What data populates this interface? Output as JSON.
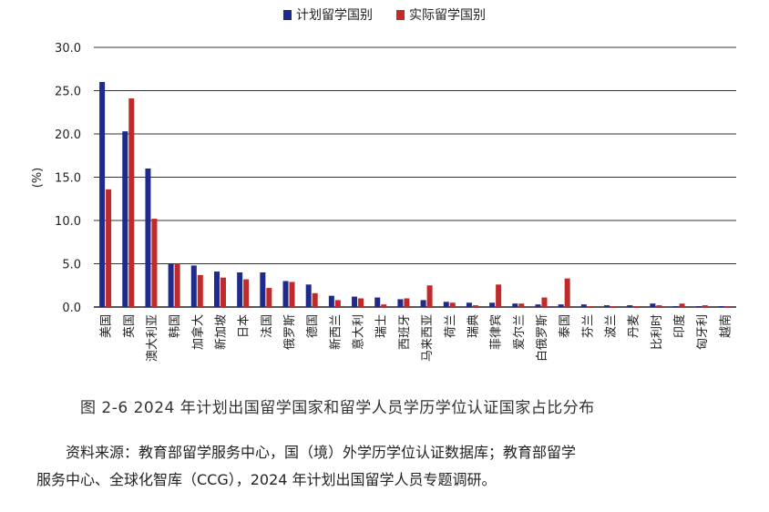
{
  "colors": {
    "planned": "#1f2a8a",
    "actual": "#c22a2a"
  },
  "legend": {
    "planned_label": "计划留学国别",
    "actual_label": "实际留学国别",
    "placement": "top-center"
  },
  "ylabel": "(%)",
  "caption": "图 2-6   2024 年计划出国留学国家和留学人员学历学位认证国家占比分布",
  "source_line1": "资料来源：教育部留学服务中心，国（境）外学历学位认证数据库；教育部留学",
  "source_line2": "服务中心、全球化智库（CCG），2024 年计划出国留学人员专题调研。",
  "chart_data": {
    "type": "bar",
    "title": "",
    "xlabel": "",
    "ylabel": "(%)",
    "ylim": [
      0,
      30
    ],
    "yticks": [
      "0.0",
      "5.0",
      "10.0",
      "15.0",
      "20.0",
      "25.0",
      "30.0"
    ],
    "grid": true,
    "legend_position": "top-center",
    "categories": [
      "美国",
      "英国",
      "澳大利亚",
      "韩国",
      "加拿大",
      "新加坡",
      "日本",
      "法国",
      "俄罗斯",
      "德国",
      "新西兰",
      "意大利",
      "瑞士",
      "西班牙",
      "马来西亚",
      "荷兰",
      "瑞典",
      "菲律宾",
      "爱尔兰",
      "白俄罗斯",
      "泰国",
      "芬兰",
      "波兰",
      "丹麦",
      "比利时",
      "印度",
      "匈牙利",
      "越南"
    ],
    "series": [
      {
        "name": "计划留学国别",
        "values": [
          26.0,
          20.3,
          16.0,
          5.0,
          4.8,
          4.1,
          4.0,
          4.0,
          3.0,
          2.6,
          1.3,
          1.2,
          1.1,
          0.9,
          0.8,
          0.6,
          0.5,
          0.5,
          0.4,
          0.3,
          0.3,
          0.3,
          0.2,
          0.2,
          0.4,
          0.1,
          0.1,
          0.1
        ]
      },
      {
        "name": "实际留学国别",
        "values": [
          13.6,
          24.1,
          10.2,
          5.0,
          3.7,
          3.4,
          3.2,
          2.2,
          2.9,
          1.6,
          0.8,
          1.0,
          0.3,
          1.0,
          2.5,
          0.5,
          0.2,
          2.6,
          0.4,
          1.1,
          3.3,
          0.1,
          0.1,
          0.1,
          0.2,
          0.4,
          0.2,
          0.1
        ]
      }
    ]
  }
}
